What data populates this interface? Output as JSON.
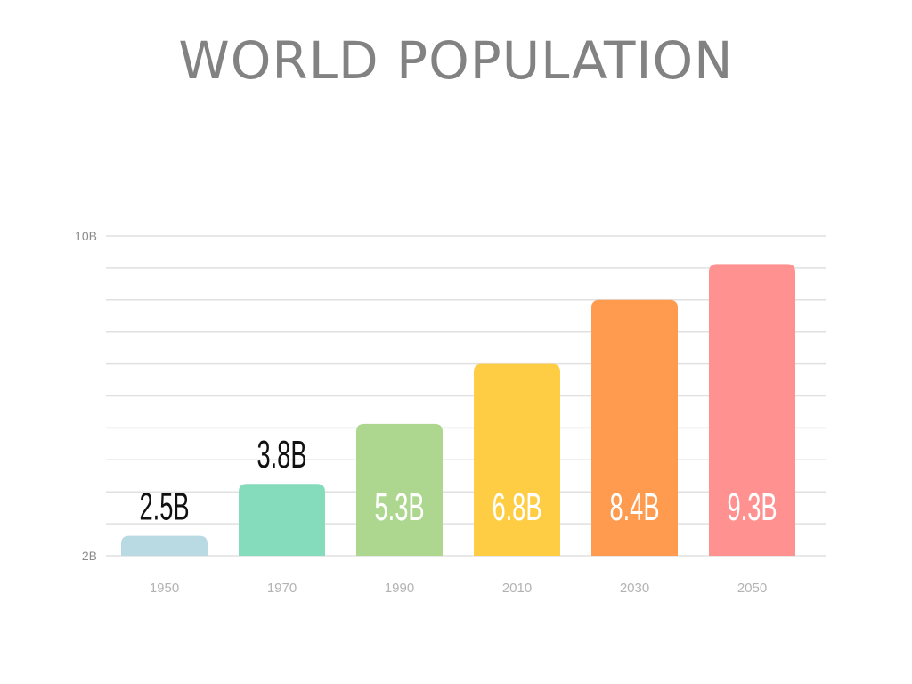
{
  "title": "WORLD POPULATION",
  "chart_data": {
    "type": "bar",
    "title": "WORLD POPULATION",
    "xlabel": "",
    "ylabel": "",
    "categories": [
      "1950",
      "1970",
      "1990",
      "2010",
      "2030",
      "2050"
    ],
    "values": [
      2.5,
      3.8,
      5.3,
      6.8,
      8.4,
      9.3
    ],
    "data_labels": [
      "2.5B",
      "3.8B",
      "5.3B",
      "6.8B",
      "8.4B",
      "9.3B"
    ],
    "ylim": [
      2,
      10
    ],
    "y_tick_labels": [
      "2B",
      "10B"
    ],
    "y_tick_values": [
      2,
      10
    ],
    "grid": true,
    "legend": "none",
    "colors": [
      "#b9d9e3",
      "#84dcbd",
      "#add78f",
      "#ffcd44",
      "#fe9b4f",
      "#ff9290"
    ],
    "label_colors": [
      "#111111",
      "#111111",
      "#ffffff",
      "#ffffff",
      "#ffffff",
      "#ffffff"
    ],
    "label_positions": [
      "above",
      "above",
      "inside",
      "inside",
      "inside",
      "inside"
    ]
  }
}
